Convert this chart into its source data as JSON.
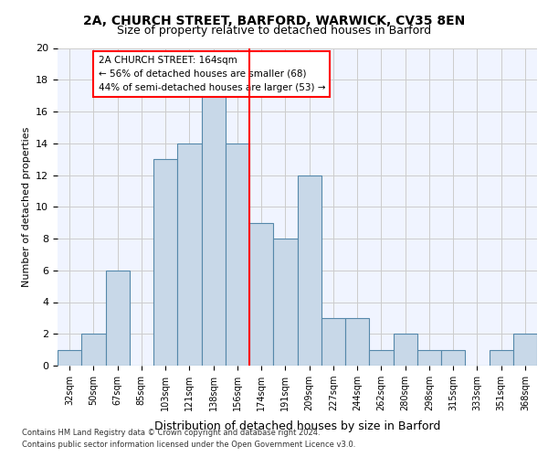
{
  "title1": "2A, CHURCH STREET, BARFORD, WARWICK, CV35 8EN",
  "title2": "Size of property relative to detached houses in Barford",
  "xlabel": "Distribution of detached houses by size in Barford",
  "ylabel": "Number of detached properties",
  "categories": [
    "32sqm",
    "50sqm",
    "67sqm",
    "85sqm",
    "103sqm",
    "121sqm",
    "138sqm",
    "156sqm",
    "174sqm",
    "191sqm",
    "209sqm",
    "227sqm",
    "244sqm",
    "262sqm",
    "280sqm",
    "298sqm",
    "315sqm",
    "333sqm",
    "351sqm",
    "368sqm"
  ],
  "bar_values": [
    1,
    2,
    6,
    0,
    13,
    14,
    17,
    14,
    9,
    8,
    12,
    3,
    3,
    1,
    2,
    1,
    1,
    0,
    1,
    2
  ],
  "bar_color": "#c8d8e8",
  "bar_edge_color": "#5588aa",
  "vline_x_pos": 7.5,
  "vline_color": "red",
  "annotation_text": "2A CHURCH STREET: 164sqm\n← 56% of detached houses are smaller (68)\n44% of semi-detached houses are larger (53) →",
  "ylim": [
    0,
    20
  ],
  "yticks": [
    0,
    2,
    4,
    6,
    8,
    10,
    12,
    14,
    16,
    18,
    20
  ],
  "grid_color": "#cccccc",
  "bg_color": "#f0f4ff",
  "footer1": "Contains HM Land Registry data © Crown copyright and database right 2024.",
  "footer2": "Contains public sector information licensed under the Open Government Licence v3.0."
}
